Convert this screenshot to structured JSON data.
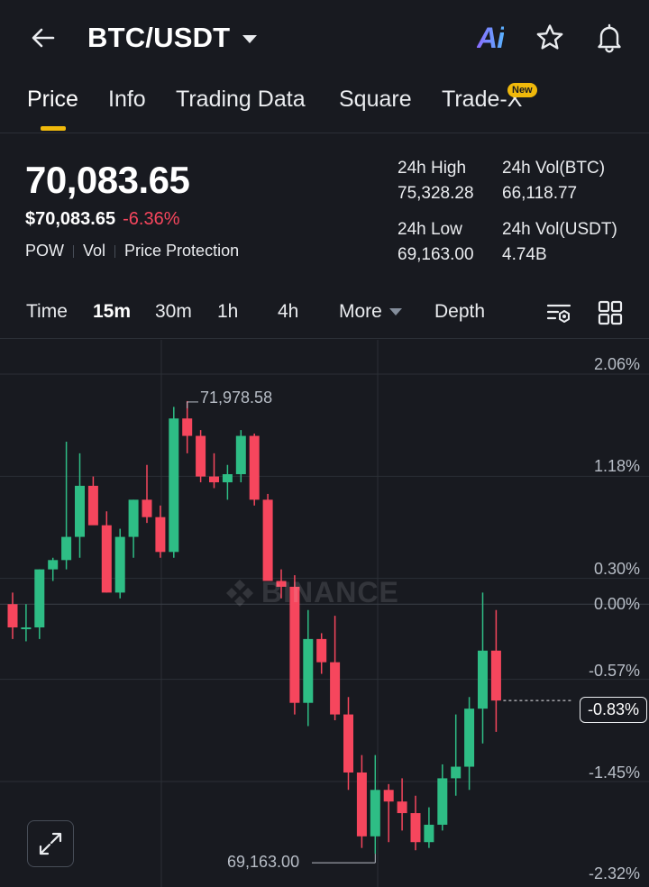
{
  "header": {
    "pair": "BTC/USDT",
    "ai_label": "Ai",
    "icons": [
      "back-arrow-icon",
      "star-icon",
      "bell-icon"
    ]
  },
  "tabs": [
    {
      "label": "Price",
      "active": true
    },
    {
      "label": "Info"
    },
    {
      "label": "Trading Data"
    },
    {
      "label": "Square"
    },
    {
      "label": "Trade-X",
      "badge": "New"
    }
  ],
  "summary": {
    "last_price": "70,083.65",
    "fiat_price": "$70,083.65",
    "change_pct": "-6.36%",
    "tags": [
      "POW",
      "Vol",
      "Price Protection"
    ],
    "high_label": "24h High",
    "high_value": "75,328.28",
    "vol_btc_label": "24h Vol(BTC)",
    "vol_btc_value": "66,118.77",
    "low_label": "24h Low",
    "low_value": "69,163.00",
    "vol_usdt_label": "24h Vol(USDT)",
    "vol_usdt_value": "4.74B"
  },
  "intervals": {
    "items": [
      "Time",
      "15m",
      "30m",
      "1h",
      "4h"
    ],
    "active": "15m",
    "more_label": "More",
    "depth_label": "Depth"
  },
  "chart": {
    "watermark": "BINANCE",
    "pct_labels": [
      "2.06%",
      "1.18%",
      "0.30%",
      "0.00%",
      "-0.57%",
      "-1.45%",
      "-2.32%"
    ],
    "current_pct": "-0.83%",
    "max_label": "71,978.58",
    "min_label": "69,163.00",
    "up_color": "#2ebd85",
    "down_color": "#f6465d",
    "chart_data": {
      "type": "candlestick",
      "y_axis_unit": "percent change",
      "ylim": [
        -2.32,
        2.06
      ],
      "candles": [
        {
          "o": 0.0,
          "h": 0.1,
          "l": -0.3,
          "c": -0.2
        },
        {
          "o": -0.2,
          "h": 0.0,
          "l": -0.32,
          "c": -0.2
        },
        {
          "o": -0.2,
          "h": 0.3,
          "l": -0.3,
          "c": 0.3
        },
        {
          "o": 0.3,
          "h": 0.4,
          "l": 0.2,
          "c": 0.38
        },
        {
          "o": 0.38,
          "h": 1.4,
          "l": 0.3,
          "c": 0.58
        },
        {
          "o": 0.58,
          "h": 1.3,
          "l": 0.4,
          "c": 1.02
        },
        {
          "o": 1.02,
          "h": 1.1,
          "l": 0.7,
          "c": 0.68
        },
        {
          "o": 0.68,
          "h": 0.8,
          "l": 0.1,
          "c": 0.1
        },
        {
          "o": 0.1,
          "h": 0.65,
          "l": 0.05,
          "c": 0.58
        },
        {
          "o": 0.58,
          "h": 0.9,
          "l": 0.4,
          "c": 0.9
        },
        {
          "o": 0.9,
          "h": 1.2,
          "l": 0.7,
          "c": 0.75
        },
        {
          "o": 0.75,
          "h": 0.85,
          "l": 0.4,
          "c": 0.45
        },
        {
          "o": 0.45,
          "h": 1.7,
          "l": 0.4,
          "c": 1.6
        },
        {
          "o": 1.6,
          "h": 1.75,
          "l": 1.3,
          "c": 1.45
        },
        {
          "o": 1.45,
          "h": 1.5,
          "l": 1.05,
          "c": 1.1
        },
        {
          "o": 1.1,
          "h": 1.3,
          "l": 1.0,
          "c": 1.05
        },
        {
          "o": 1.05,
          "h": 1.2,
          "l": 0.9,
          "c": 1.12
        },
        {
          "o": 1.12,
          "h": 1.5,
          "l": 1.05,
          "c": 1.45
        },
        {
          "o": 1.45,
          "h": 1.47,
          "l": 0.85,
          "c": 0.9
        },
        {
          "o": 0.9,
          "h": 0.95,
          "l": 0.2,
          "c": 0.2
        },
        {
          "o": 0.2,
          "h": 0.3,
          "l": 0.05,
          "c": 0.15
        },
        {
          "o": 0.15,
          "h": 0.25,
          "l": -0.95,
          "c": -0.85
        },
        {
          "o": -0.85,
          "h": -0.05,
          "l": -1.05,
          "c": -0.3
        },
        {
          "o": -0.3,
          "h": -0.25,
          "l": -0.6,
          "c": -0.5
        },
        {
          "o": -0.5,
          "h": -0.1,
          "l": -1.0,
          "c": -0.95
        },
        {
          "o": -0.95,
          "h": -0.8,
          "l": -1.6,
          "c": -1.45
        },
        {
          "o": -1.45,
          "h": -1.3,
          "l": -2.1,
          "c": -2.0
        },
        {
          "o": -2.0,
          "h": -1.3,
          "l": -2.15,
          "c": -1.6
        },
        {
          "o": -1.6,
          "h": -1.55,
          "l": -2.05,
          "c": -1.7
        },
        {
          "o": -1.7,
          "h": -1.5,
          "l": -1.95,
          "c": -1.8
        },
        {
          "o": -1.8,
          "h": -1.65,
          "l": -2.12,
          "c": -2.05
        },
        {
          "o": -2.05,
          "h": -1.75,
          "l": -2.1,
          "c": -1.9
        },
        {
          "o": -1.9,
          "h": -1.38,
          "l": -1.95,
          "c": -1.5
        },
        {
          "o": -1.5,
          "h": -0.95,
          "l": -1.65,
          "c": -1.4
        },
        {
          "o": -1.4,
          "h": -0.8,
          "l": -1.6,
          "c": -0.9
        },
        {
          "o": -0.9,
          "h": 0.1,
          "l": -1.2,
          "c": -0.4
        },
        {
          "o": -0.4,
          "h": -0.05,
          "l": -1.1,
          "c": -0.83
        }
      ]
    }
  }
}
